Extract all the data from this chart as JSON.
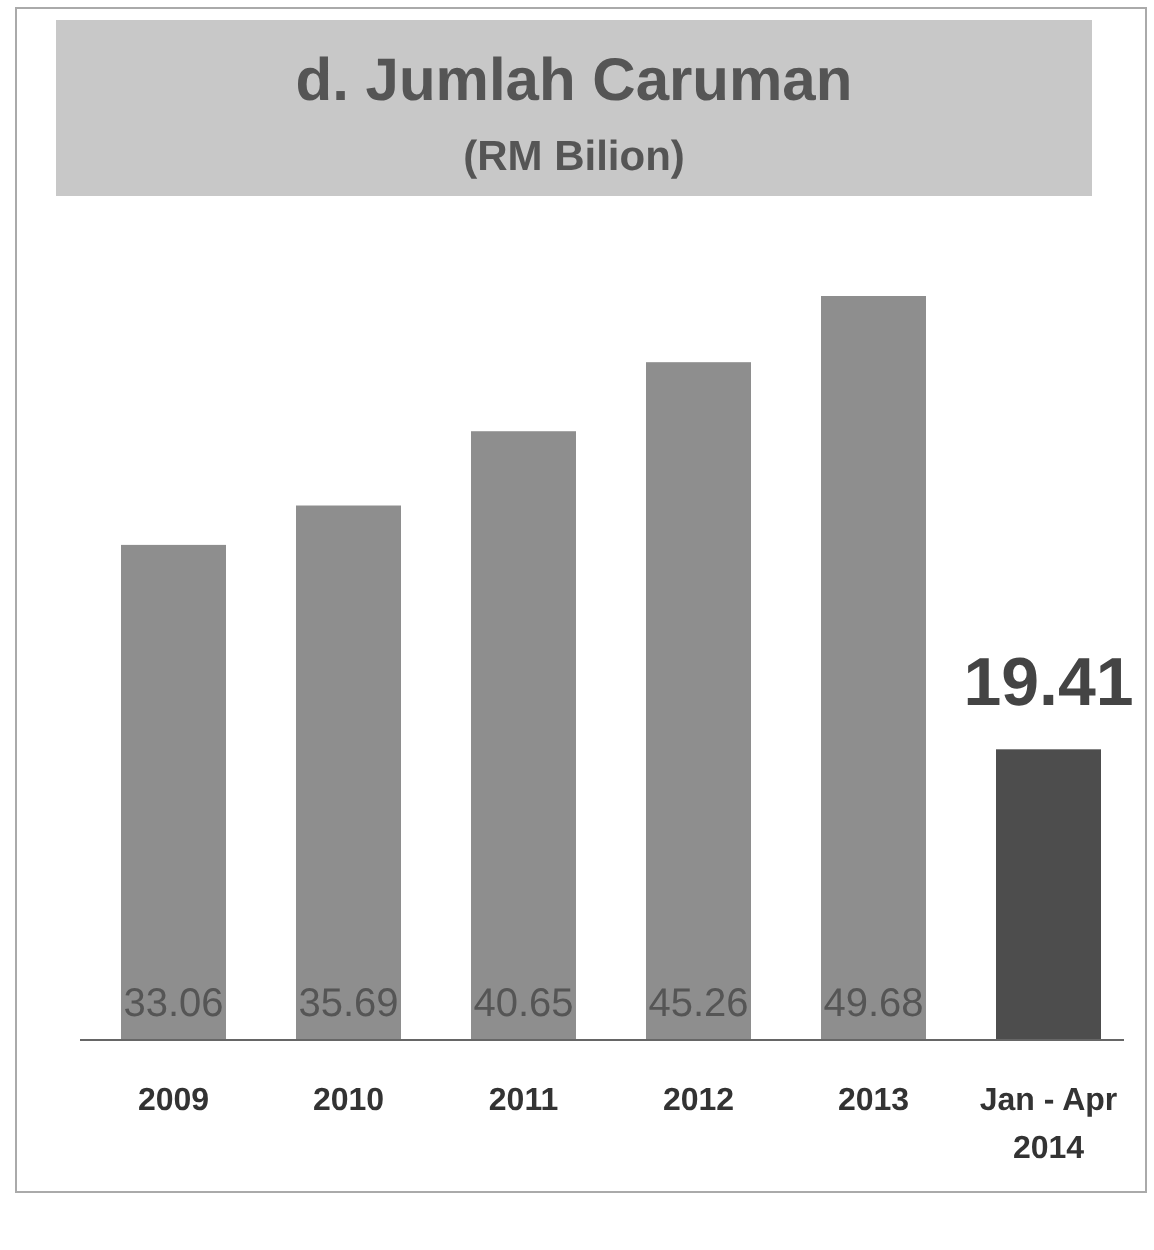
{
  "chart_data": {
    "type": "bar",
    "title": "d. Jumlah Caruman",
    "subtitle": "(RM Bilion)",
    "categories": [
      "2009",
      "2010",
      "2011",
      "2012",
      "2013",
      "Jan - Apr 2014"
    ],
    "values": [
      33.06,
      35.69,
      40.65,
      45.26,
      49.68,
      19.41
    ],
    "colors": [
      "#8e8e8e",
      "#8e8e8e",
      "#8e8e8e",
      "#8e8e8e",
      "#8e8e8e",
      "#4d4d4d"
    ],
    "data_labels": true
  }
}
